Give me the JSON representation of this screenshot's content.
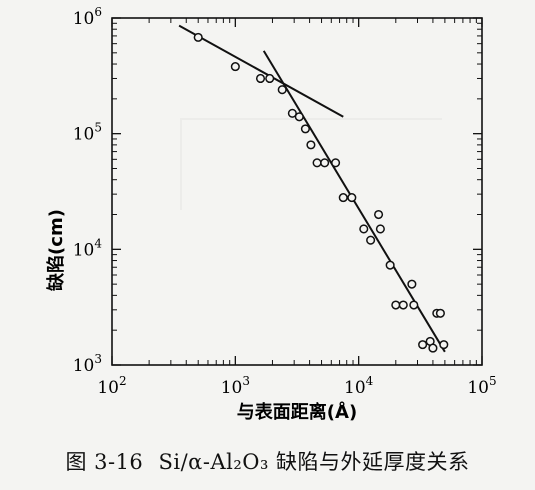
{
  "chart_data": {
    "type": "scatter",
    "x_scale": "log",
    "y_scale": "log",
    "xlim": [
      100,
      100000
    ],
    "ylim": [
      1000,
      1000000
    ],
    "x_ticks": [
      {
        "value": 100,
        "mantissa": "10",
        "exponent": "2"
      },
      {
        "value": 1000,
        "mantissa": "10",
        "exponent": "3"
      },
      {
        "value": 10000,
        "mantissa": "10",
        "exponent": "4"
      },
      {
        "value": 100000,
        "mantissa": "10",
        "exponent": "5"
      }
    ],
    "y_ticks": [
      {
        "value": 1000,
        "mantissa": "10",
        "exponent": "3"
      },
      {
        "value": 10000,
        "mantissa": "10",
        "exponent": "4"
      },
      {
        "value": 100000,
        "mantissa": "10",
        "exponent": "5"
      },
      {
        "value": 1000000,
        "mantissa": "10",
        "exponent": "6"
      }
    ],
    "xlabel": "与表面距离(Å)",
    "ylabel": "缺陷(cm)",
    "grid": false,
    "points": [
      [
        500,
        680000
      ],
      [
        1000,
        380000
      ],
      [
        1600,
        300000
      ],
      [
        1900,
        300000
      ],
      [
        2400,
        240000
      ],
      [
        2900,
        150000
      ],
      [
        3300,
        140000
      ],
      [
        3700,
        110000
      ],
      [
        4100,
        80000
      ],
      [
        4600,
        56000
      ],
      [
        5300,
        56000
      ],
      [
        6500,
        56000
      ],
      [
        7500,
        28000
      ],
      [
        8800,
        28000
      ],
      [
        11000,
        15000
      ],
      [
        12500,
        12000
      ],
      [
        14500,
        20000
      ],
      [
        15000,
        15000
      ],
      [
        18000,
        7300
      ],
      [
        20000,
        3300
      ],
      [
        23000,
        3300
      ],
      [
        27000,
        5000
      ],
      [
        28000,
        3300
      ],
      [
        33000,
        1500
      ],
      [
        38000,
        1600
      ],
      [
        40000,
        1400
      ],
      [
        43000,
        2800
      ],
      [
        46000,
        2800
      ],
      [
        49000,
        1500
      ]
    ],
    "fit_lines": [
      {
        "x": [
          350,
          7500
        ],
        "y": [
          860000,
          140000
        ]
      },
      {
        "x": [
          1700,
          50000
        ],
        "y": [
          520000,
          1300
        ]
      }
    ]
  },
  "caption": {
    "number": "图 3-16",
    "text": "Si/α-Al₂O₃ 缺陷与外延厚度关系"
  }
}
